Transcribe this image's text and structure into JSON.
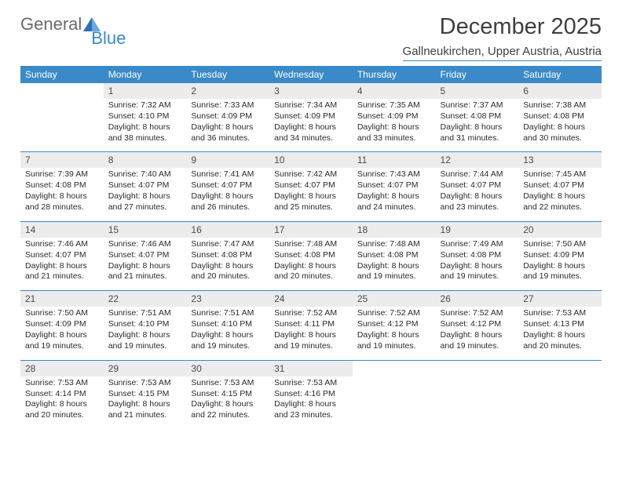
{
  "brand": {
    "part1": "General",
    "part2": "Blue"
  },
  "title": "December 2025",
  "location": "Gallneukirchen, Upper Austria, Austria",
  "colors": {
    "accent": "#3a8ac9",
    "header_text": "#ffffff",
    "daybar_bg": "#ececec",
    "text": "#2b2b2b",
    "title_text": "#3f3f3f",
    "logo_gray": "#6b6b6b"
  },
  "calendar": {
    "weekdays": [
      "Sunday",
      "Monday",
      "Tuesday",
      "Wednesday",
      "Thursday",
      "Friday",
      "Saturday"
    ],
    "weeks": [
      [
        {
          "day": "",
          "sunrise": "",
          "sunset": "",
          "daylight": ""
        },
        {
          "day": "1",
          "sunrise": "Sunrise: 7:32 AM",
          "sunset": "Sunset: 4:10 PM",
          "daylight": "Daylight: 8 hours and 38 minutes."
        },
        {
          "day": "2",
          "sunrise": "Sunrise: 7:33 AM",
          "sunset": "Sunset: 4:09 PM",
          "daylight": "Daylight: 8 hours and 36 minutes."
        },
        {
          "day": "3",
          "sunrise": "Sunrise: 7:34 AM",
          "sunset": "Sunset: 4:09 PM",
          "daylight": "Daylight: 8 hours and 34 minutes."
        },
        {
          "day": "4",
          "sunrise": "Sunrise: 7:35 AM",
          "sunset": "Sunset: 4:09 PM",
          "daylight": "Daylight: 8 hours and 33 minutes."
        },
        {
          "day": "5",
          "sunrise": "Sunrise: 7:37 AM",
          "sunset": "Sunset: 4:08 PM",
          "daylight": "Daylight: 8 hours and 31 minutes."
        },
        {
          "day": "6",
          "sunrise": "Sunrise: 7:38 AM",
          "sunset": "Sunset: 4:08 PM",
          "daylight": "Daylight: 8 hours and 30 minutes."
        }
      ],
      [
        {
          "day": "7",
          "sunrise": "Sunrise: 7:39 AM",
          "sunset": "Sunset: 4:08 PM",
          "daylight": "Daylight: 8 hours and 28 minutes."
        },
        {
          "day": "8",
          "sunrise": "Sunrise: 7:40 AM",
          "sunset": "Sunset: 4:07 PM",
          "daylight": "Daylight: 8 hours and 27 minutes."
        },
        {
          "day": "9",
          "sunrise": "Sunrise: 7:41 AM",
          "sunset": "Sunset: 4:07 PM",
          "daylight": "Daylight: 8 hours and 26 minutes."
        },
        {
          "day": "10",
          "sunrise": "Sunrise: 7:42 AM",
          "sunset": "Sunset: 4:07 PM",
          "daylight": "Daylight: 8 hours and 25 minutes."
        },
        {
          "day": "11",
          "sunrise": "Sunrise: 7:43 AM",
          "sunset": "Sunset: 4:07 PM",
          "daylight": "Daylight: 8 hours and 24 minutes."
        },
        {
          "day": "12",
          "sunrise": "Sunrise: 7:44 AM",
          "sunset": "Sunset: 4:07 PM",
          "daylight": "Daylight: 8 hours and 23 minutes."
        },
        {
          "day": "13",
          "sunrise": "Sunrise: 7:45 AM",
          "sunset": "Sunset: 4:07 PM",
          "daylight": "Daylight: 8 hours and 22 minutes."
        }
      ],
      [
        {
          "day": "14",
          "sunrise": "Sunrise: 7:46 AM",
          "sunset": "Sunset: 4:07 PM",
          "daylight": "Daylight: 8 hours and 21 minutes."
        },
        {
          "day": "15",
          "sunrise": "Sunrise: 7:46 AM",
          "sunset": "Sunset: 4:07 PM",
          "daylight": "Daylight: 8 hours and 21 minutes."
        },
        {
          "day": "16",
          "sunrise": "Sunrise: 7:47 AM",
          "sunset": "Sunset: 4:08 PM",
          "daylight": "Daylight: 8 hours and 20 minutes."
        },
        {
          "day": "17",
          "sunrise": "Sunrise: 7:48 AM",
          "sunset": "Sunset: 4:08 PM",
          "daylight": "Daylight: 8 hours and 20 minutes."
        },
        {
          "day": "18",
          "sunrise": "Sunrise: 7:48 AM",
          "sunset": "Sunset: 4:08 PM",
          "daylight": "Daylight: 8 hours and 19 minutes."
        },
        {
          "day": "19",
          "sunrise": "Sunrise: 7:49 AM",
          "sunset": "Sunset: 4:08 PM",
          "daylight": "Daylight: 8 hours and 19 minutes."
        },
        {
          "day": "20",
          "sunrise": "Sunrise: 7:50 AM",
          "sunset": "Sunset: 4:09 PM",
          "daylight": "Daylight: 8 hours and 19 minutes."
        }
      ],
      [
        {
          "day": "21",
          "sunrise": "Sunrise: 7:50 AM",
          "sunset": "Sunset: 4:09 PM",
          "daylight": "Daylight: 8 hours and 19 minutes."
        },
        {
          "day": "22",
          "sunrise": "Sunrise: 7:51 AM",
          "sunset": "Sunset: 4:10 PM",
          "daylight": "Daylight: 8 hours and 19 minutes."
        },
        {
          "day": "23",
          "sunrise": "Sunrise: 7:51 AM",
          "sunset": "Sunset: 4:10 PM",
          "daylight": "Daylight: 8 hours and 19 minutes."
        },
        {
          "day": "24",
          "sunrise": "Sunrise: 7:52 AM",
          "sunset": "Sunset: 4:11 PM",
          "daylight": "Daylight: 8 hours and 19 minutes."
        },
        {
          "day": "25",
          "sunrise": "Sunrise: 7:52 AM",
          "sunset": "Sunset: 4:12 PM",
          "daylight": "Daylight: 8 hours and 19 minutes."
        },
        {
          "day": "26",
          "sunrise": "Sunrise: 7:52 AM",
          "sunset": "Sunset: 4:12 PM",
          "daylight": "Daylight: 8 hours and 19 minutes."
        },
        {
          "day": "27",
          "sunrise": "Sunrise: 7:53 AM",
          "sunset": "Sunset: 4:13 PM",
          "daylight": "Daylight: 8 hours and 20 minutes."
        }
      ],
      [
        {
          "day": "28",
          "sunrise": "Sunrise: 7:53 AM",
          "sunset": "Sunset: 4:14 PM",
          "daylight": "Daylight: 8 hours and 20 minutes."
        },
        {
          "day": "29",
          "sunrise": "Sunrise: 7:53 AM",
          "sunset": "Sunset: 4:15 PM",
          "daylight": "Daylight: 8 hours and 21 minutes."
        },
        {
          "day": "30",
          "sunrise": "Sunrise: 7:53 AM",
          "sunset": "Sunset: 4:15 PM",
          "daylight": "Daylight: 8 hours and 22 minutes."
        },
        {
          "day": "31",
          "sunrise": "Sunrise: 7:53 AM",
          "sunset": "Sunset: 4:16 PM",
          "daylight": "Daylight: 8 hours and 23 minutes."
        },
        {
          "day": "",
          "sunrise": "",
          "sunset": "",
          "daylight": ""
        },
        {
          "day": "",
          "sunrise": "",
          "sunset": "",
          "daylight": ""
        },
        {
          "day": "",
          "sunrise": "",
          "sunset": "",
          "daylight": ""
        }
      ]
    ]
  }
}
